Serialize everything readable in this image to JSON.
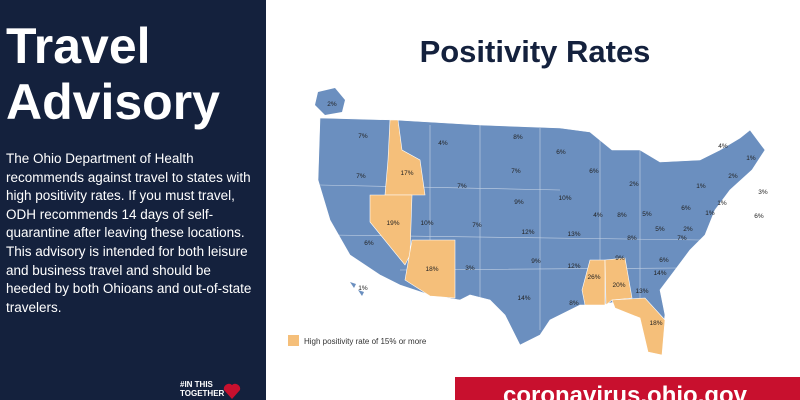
{
  "sidebar": {
    "title_lines": [
      "Travel",
      "Advisory"
    ],
    "body": "The Ohio Department of Health recommends against travel to states with high positivity rates. If you must travel, ODH recommends 14 days of self-quarantine after leaving these locations. This advisory is intended for both leisure and business travel and should be heeded by both Ohioans and out-of-state travelers.",
    "logo_lines": [
      "#IN THIS",
      "TOGETHER"
    ]
  },
  "map": {
    "title": "Positivity Rates",
    "base_color": "#6b8fbf",
    "high_color": "#f5bf7a",
    "labels": [
      {
        "text": "2%",
        "high": false
      },
      {
        "text": "7%",
        "high": false
      },
      {
        "text": "4%",
        "high": false
      },
      {
        "text": "8%",
        "high": false
      },
      {
        "text": "6%",
        "high": false
      },
      {
        "text": "7%",
        "high": false
      },
      {
        "text": "17%",
        "high": true
      },
      {
        "text": "7%",
        "high": false
      },
      {
        "text": "7%",
        "high": false
      },
      {
        "text": "6%",
        "high": false
      },
      {
        "text": "2%",
        "high": false
      },
      {
        "text": "1%",
        "high": false
      },
      {
        "text": "2%",
        "high": false
      },
      {
        "text": "1%",
        "high": false
      },
      {
        "text": "4%",
        "high": false
      },
      {
        "text": "3%",
        "high": false
      },
      {
        "text": "9%",
        "high": false
      },
      {
        "text": "10%",
        "high": false
      },
      {
        "text": "19%",
        "high": true
      },
      {
        "text": "10%",
        "high": false
      },
      {
        "text": "7%",
        "high": false
      },
      {
        "text": "4%",
        "high": false
      },
      {
        "text": "8%",
        "high": false
      },
      {
        "text": "5%",
        "high": false
      },
      {
        "text": "6%",
        "high": false
      },
      {
        "text": "1%",
        "high": false
      },
      {
        "text": "1%",
        "high": false
      },
      {
        "text": "6%",
        "high": false
      },
      {
        "text": "6%",
        "high": false
      },
      {
        "text": "12%",
        "high": false
      },
      {
        "text": "13%",
        "high": false
      },
      {
        "text": "8%",
        "high": false
      },
      {
        "text": "5%",
        "high": false
      },
      {
        "text": "2%",
        "high": false
      },
      {
        "text": "7%",
        "high": false
      },
      {
        "text": "9%",
        "high": false
      },
      {
        "text": "12%",
        "high": false
      },
      {
        "text": "9%",
        "high": false
      },
      {
        "text": "6%",
        "high": false
      },
      {
        "text": "18%",
        "high": true
      },
      {
        "text": "3%",
        "high": false
      },
      {
        "text": "14%",
        "high": false
      },
      {
        "text": "26%",
        "high": true
      },
      {
        "text": "20%",
        "high": true
      },
      {
        "text": "13%",
        "high": false
      },
      {
        "text": "14%",
        "high": false
      },
      {
        "text": "8%",
        "high": false
      },
      {
        "text": "18%",
        "high": true
      },
      {
        "text": "1%",
        "high": false
      }
    ],
    "legend": "High positivity rate of 15% or more"
  },
  "footer": {
    "url": "coronavirus.ohio.gov"
  }
}
